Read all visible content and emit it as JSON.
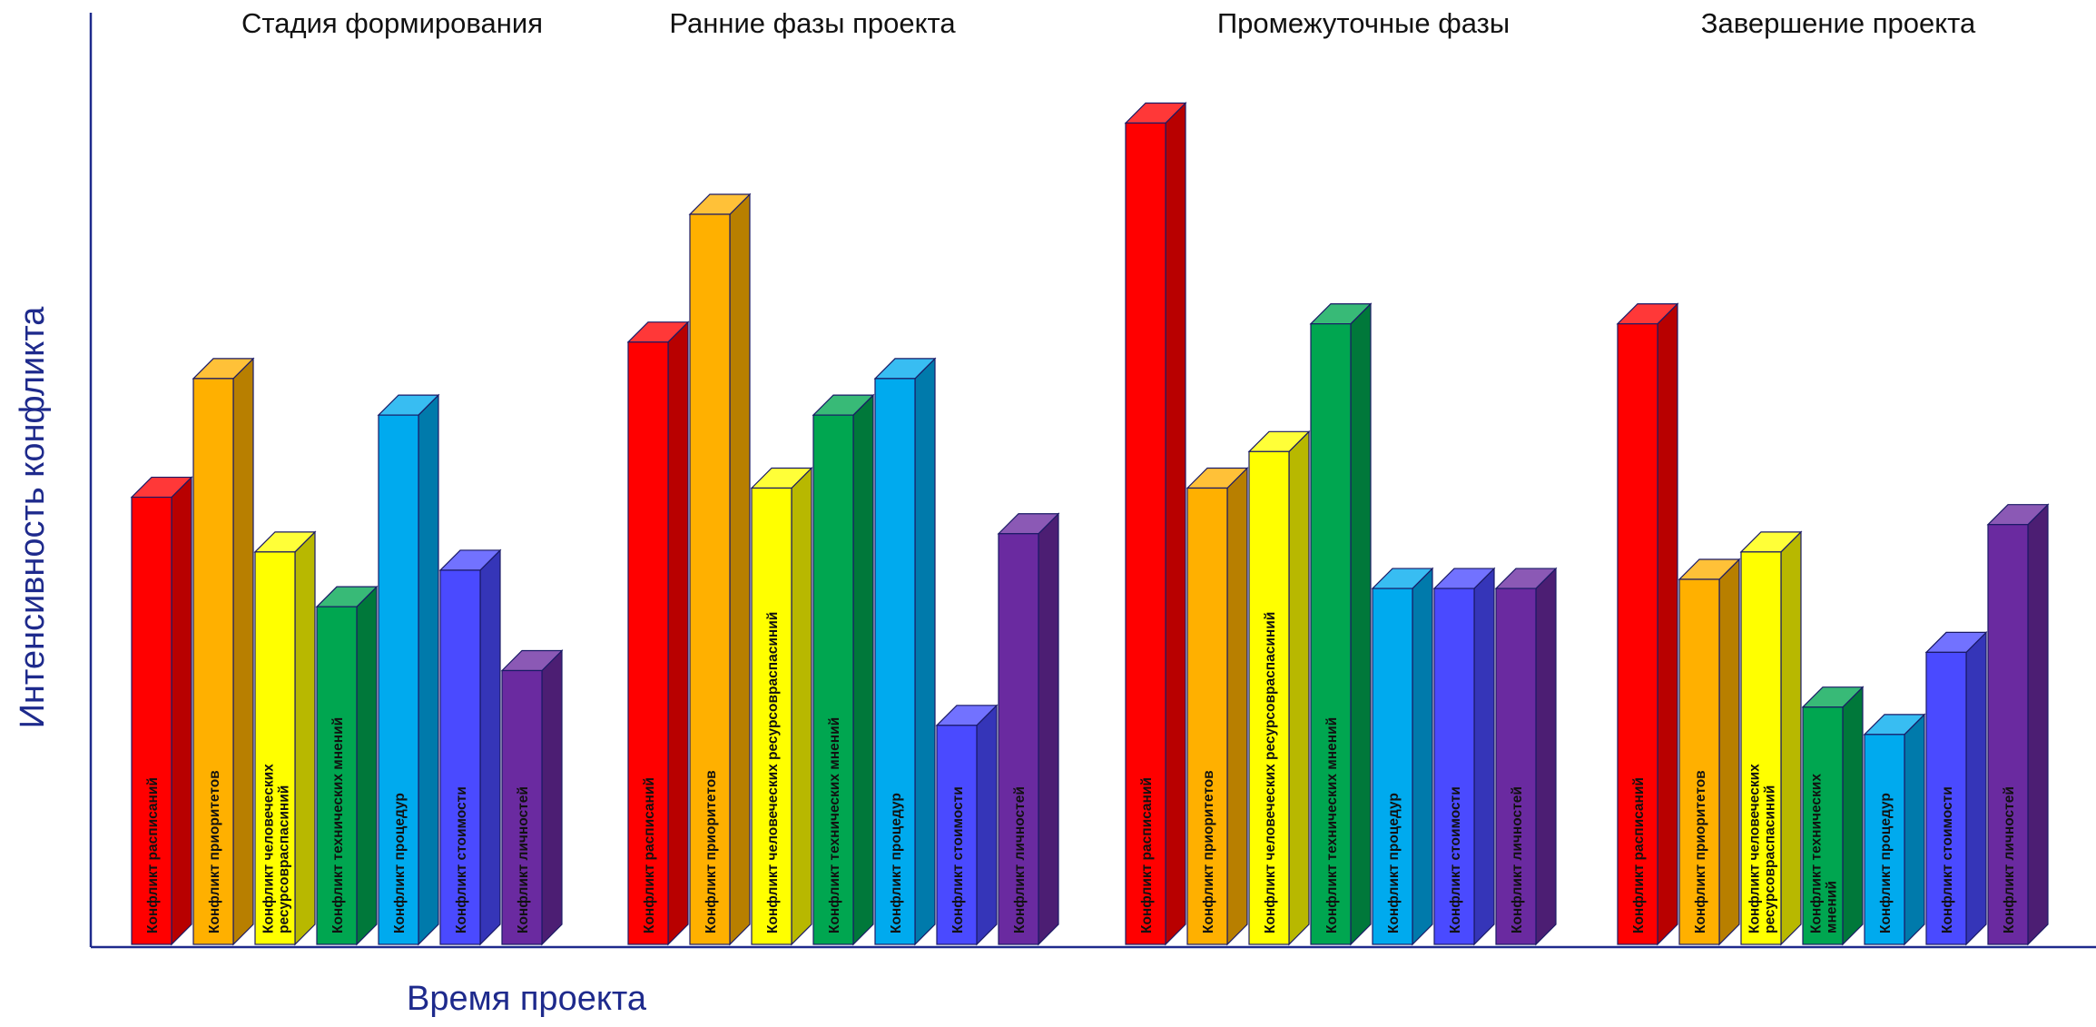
{
  "chart_data": {
    "type": "bar",
    "title": "",
    "xlabel": "Время проекта",
    "ylabel": "Интенсивность конфликта",
    "grid": false,
    "legend": "none",
    "ylim": [
      0,
      100
    ],
    "categories": [
      "Стадия формирования",
      "Ранние фазы проекта",
      "Промежуточные фазы",
      "Завершение проекта"
    ],
    "series": [
      {
        "color": "#ff0000",
        "values": [
          49,
          66,
          90,
          68
        ],
        "labels": [
          [
            "Конфликт расписаний"
          ],
          [
            "Конфликт расписаний"
          ],
          [
            "Конфликт расписаний"
          ],
          [
            "Конфликт расписаний"
          ]
        ]
      },
      {
        "color": "#ffb000",
        "values": [
          62,
          80,
          50,
          40
        ],
        "labels": [
          [
            "Конфликт приоритетов"
          ],
          [
            "Конфликт приоритетов"
          ],
          [
            "Конфликт приоритетов"
          ],
          [
            "Конфликт приоритетов"
          ]
        ]
      },
      {
        "color": "#ffff00",
        "values": [
          43,
          50,
          54,
          43
        ],
        "labels": [
          [
            "Конфликт человеческих",
            "ресурсовраспасиний"
          ],
          [
            "Конфликт человеческих ресурсовраспасиний"
          ],
          [
            "Конфликт человеческих ресурсовраспасиний"
          ],
          [
            "Конфликт человеческих",
            "ресурсовраспасиний"
          ]
        ]
      },
      {
        "color": "#00a650",
        "values": [
          37,
          58,
          68,
          26
        ],
        "labels": [
          [
            "Конфликт технических мнений"
          ],
          [
            "Конфликт технических мнений"
          ],
          [
            "Конфликт технических мнений"
          ],
          [
            "Конфликт технических",
            "мнений"
          ]
        ]
      },
      {
        "color": "#00aaee",
        "values": [
          58,
          62,
          39,
          23
        ],
        "labels": [
          [
            "Конфликт процедур"
          ],
          [
            "Конфликт процедур"
          ],
          [
            "Конфликт процедур"
          ],
          [
            "Конфликт процедур"
          ]
        ]
      },
      {
        "color": "#4a4aff",
        "values": [
          41,
          24,
          39,
          32
        ],
        "labels": [
          [
            "Конфликт стоимости"
          ],
          [
            "Конфликт стоимости"
          ],
          [
            "Конфликт стоимости"
          ],
          [
            "Конфликт стоимости"
          ]
        ]
      },
      {
        "color": "#6a2aa0",
        "values": [
          30,
          45,
          39,
          46
        ],
        "labels": [
          [
            "Конфликт личностей"
          ],
          [
            "Конфликт личностей"
          ],
          [
            "Конфликт личностей"
          ],
          [
            "Конфликт личностей"
          ]
        ]
      }
    ]
  },
  "colors": {
    "axis": "#1e2a8c",
    "bar_outline": "#1a1a66"
  }
}
